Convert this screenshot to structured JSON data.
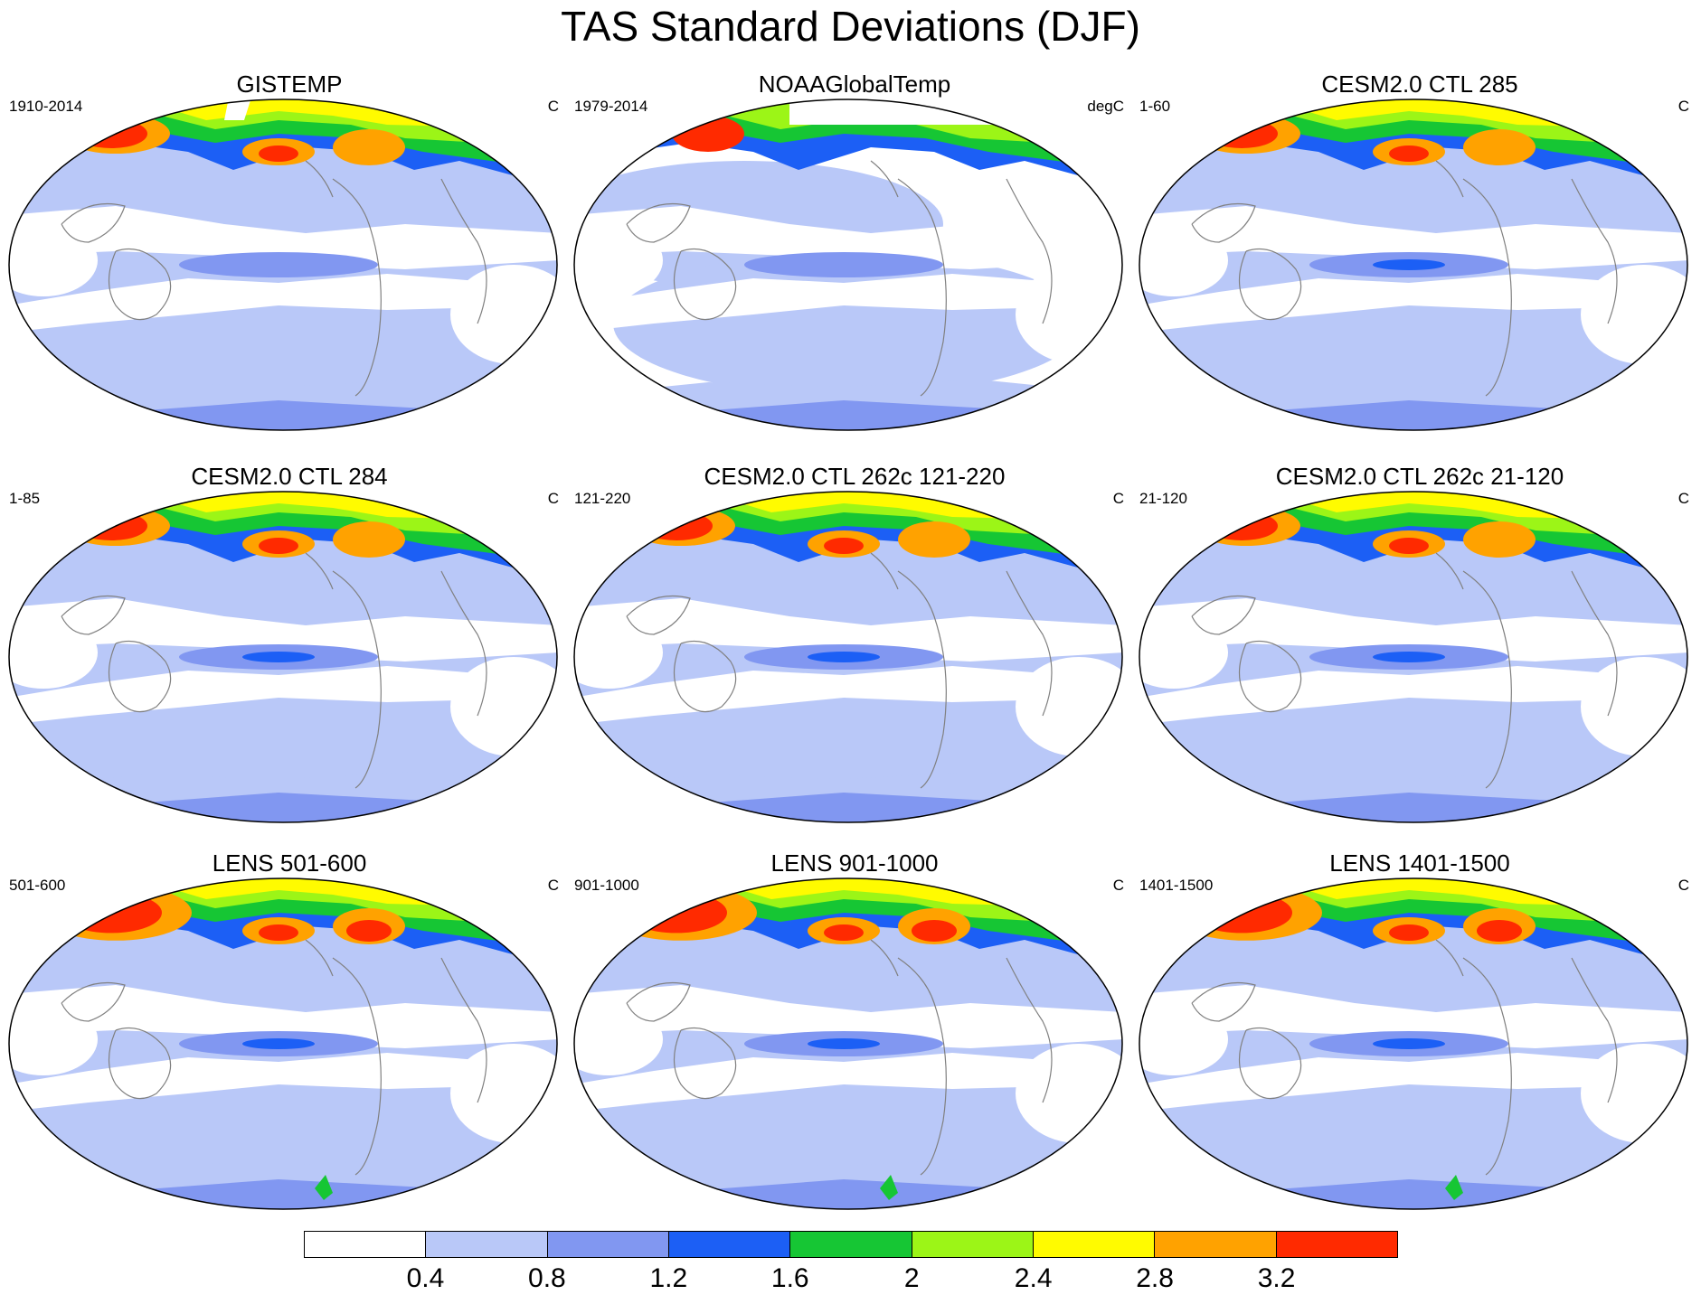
{
  "title": "TAS Standard Deviations (DJF)",
  "colors": {
    "white": "#ffffff",
    "c1": "#b9c8f8",
    "c2": "#8197f1",
    "c3": "#1c5ff5",
    "c4": "#16c634",
    "c5": "#9cf517",
    "c6": "#fffb00",
    "c7": "#ffa200",
    "c8": "#ff2a00",
    "coast": "#808080"
  },
  "panels": [
    {
      "title": "GISTEMP",
      "left": "1910-2014",
      "right": "C",
      "style": "gistemp"
    },
    {
      "title": "NOAAGlobalTemp",
      "left": "1979-2014",
      "right": "degC",
      "style": "noaa"
    },
    {
      "title": "CESM2.0 CTL 285",
      "left": "1-60",
      "right": "C",
      "style": "model"
    },
    {
      "title": "CESM2.0 CTL 284",
      "left": "1-85",
      "right": "C",
      "style": "model"
    },
    {
      "title": "CESM2.0 CTL 262c 121-220",
      "left": "121-220",
      "right": "C",
      "style": "model"
    },
    {
      "title": "CESM2.0 CTL 262c 21-120",
      "left": "21-120",
      "right": "C",
      "style": "model"
    },
    {
      "title": "LENS 501-600",
      "left": "501-600",
      "right": "C",
      "style": "lens"
    },
    {
      "title": "LENS 901-1000",
      "left": "901-1000",
      "right": "C",
      "style": "lens"
    },
    {
      "title": "LENS 1401-1500",
      "left": "1401-1500",
      "right": "C",
      "style": "lens"
    }
  ],
  "colorbar": {
    "colors": [
      "#ffffff",
      "#b9c8f8",
      "#8197f1",
      "#1c5ff5",
      "#16c634",
      "#9cf517",
      "#fffb00",
      "#ffa200",
      "#ff2a00"
    ],
    "labels": [
      "0.4",
      "0.8",
      "1.2",
      "1.6",
      "2",
      "2.4",
      "2.8",
      "3.2"
    ]
  }
}
